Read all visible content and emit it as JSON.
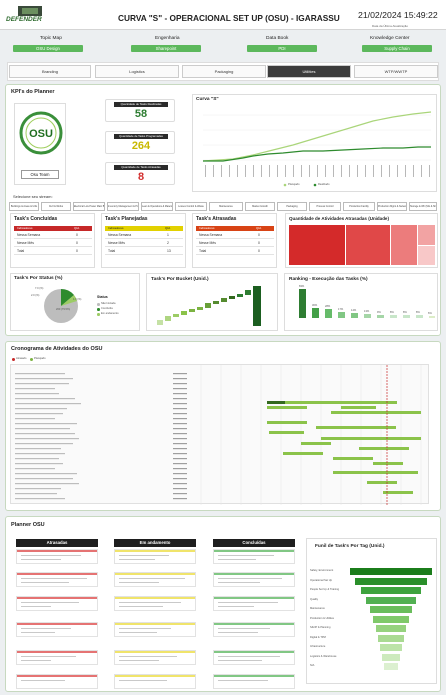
{
  "header": {
    "logo_text": "DEFENDER",
    "title": "CURVA \"S\" - OPERACIONAL SET UP (OSU) - IGARASSU",
    "datetime": "21/02/2024 15:49:22",
    "datetime_caption": "Data da Última Atualização"
  },
  "links": [
    {
      "group": "Topic Map",
      "button": "OSU Design"
    },
    {
      "group": "Engenharia",
      "button": "Sharepoint"
    },
    {
      "group": "Data Book",
      "button": "PDI"
    },
    {
      "group": "Knowledge Center",
      "button": "Supply Chain"
    }
  ],
  "tabs": [
    "Branding",
    "Logistics",
    "Packaging",
    "Utilities",
    "WTP/WWTP"
  ],
  "active_tab": "Utilities",
  "kpis": {
    "title": "KPI's do Planner",
    "osu_caption": "Osu Team",
    "cards": [
      {
        "label": "Quantidade de Tasks Realizadas",
        "value": "58",
        "color": "#2e7d32"
      },
      {
        "label": "Quantidade de Tasks Programadas",
        "value": "264",
        "color": "#c9b800"
      },
      {
        "label": "Quantidade de Tasks Atrasadas",
        "value": "8",
        "color": "#d32f2f"
      }
    ],
    "filter_caption": "Selecione seu stream:",
    "filters": [
      "Buildings & Areas & Utils",
      "Civil & Works",
      "Electrical Low Power Main Building",
      "Inventory Management & Products Control",
      "Lean & Operations & Materials",
      "Losses Control & Waste",
      "Maintenance",
      "Market Growth",
      "Packaging",
      "Process Control",
      "Production Facility",
      "Production Mgmt & Network",
      "Storage & Wh (Mix & Ship)"
    ]
  },
  "curve": {
    "title": "Curva \"S\"",
    "legend": [
      "Planejado",
      "Realizado"
    ]
  },
  "mini_tables": [
    {
      "title": "Task's Concluídas",
      "color": "#c62828",
      "head": [
        "Indicadores",
        "Qtd."
      ],
      "rows": [
        "Nessa Semana",
        "Nesse Mês",
        "Total"
      ],
      "values": [
        "0",
        "0",
        "0"
      ]
    },
    {
      "title": "Task's Planejadas",
      "color": "#d6c400",
      "head": [
        "Indicadores",
        "Qtd."
      ],
      "rows": [
        "Nessa Semana",
        "Nesse Mês",
        "Total"
      ],
      "values": [
        "1",
        "2",
        "13"
      ]
    },
    {
      "title": "Task's Atrasadas",
      "color": "#c62828",
      "head": [
        "Indicadores",
        "Qtd."
      ],
      "rows": [
        "Nessa Semana",
        "Nesse Mês",
        "Total"
      ],
      "values": [
        "0",
        "0",
        "0"
      ]
    }
  ],
  "late_treemap": {
    "title": "Quantidade de Atividades Atrasadas (Unidade)"
  },
  "status": {
    "title": "Task's Por Status (%)",
    "legend_title": "Status",
    "legend": [
      "Não Iniciada",
      "Concluída",
      "Em andamento"
    ],
    "labels": [
      "7.0 (%)",
      "2.0 (%)",
      "1.0 (%)",
      "200 (79.5%)"
    ]
  },
  "bucket": {
    "title": "Task's Por Bucket (Unid.)"
  },
  "ranking": {
    "title": "Ranking - Execução das Tasks (%)",
    "labels": [
      "83%",
      "30%",
      "28%",
      "17%",
      "14%",
      "13%",
      "9%",
      "8%",
      "8%",
      "8%",
      "6%"
    ]
  },
  "gantt": {
    "title": "Cronograma de Atividades do OSU",
    "legend": [
      "Atrasado",
      "Planejado"
    ]
  },
  "planner": {
    "title": "Planner OSU",
    "columns": [
      "Atrasadas",
      "Em andamento",
      "Concluídas"
    ]
  },
  "funnel": {
    "title": "Funil de Task's Por Tag (Unid.)",
    "tags": [
      "Safety, Environment",
      "Operational Set Up",
      "People Set Up & Training",
      "Quality",
      "Maintenance",
      "Production & Utilities",
      "S&OP & Planning",
      "Digital & TPM",
      "Infrastructure",
      "Logistics & Warehouse",
      "N/A"
    ]
  }
}
